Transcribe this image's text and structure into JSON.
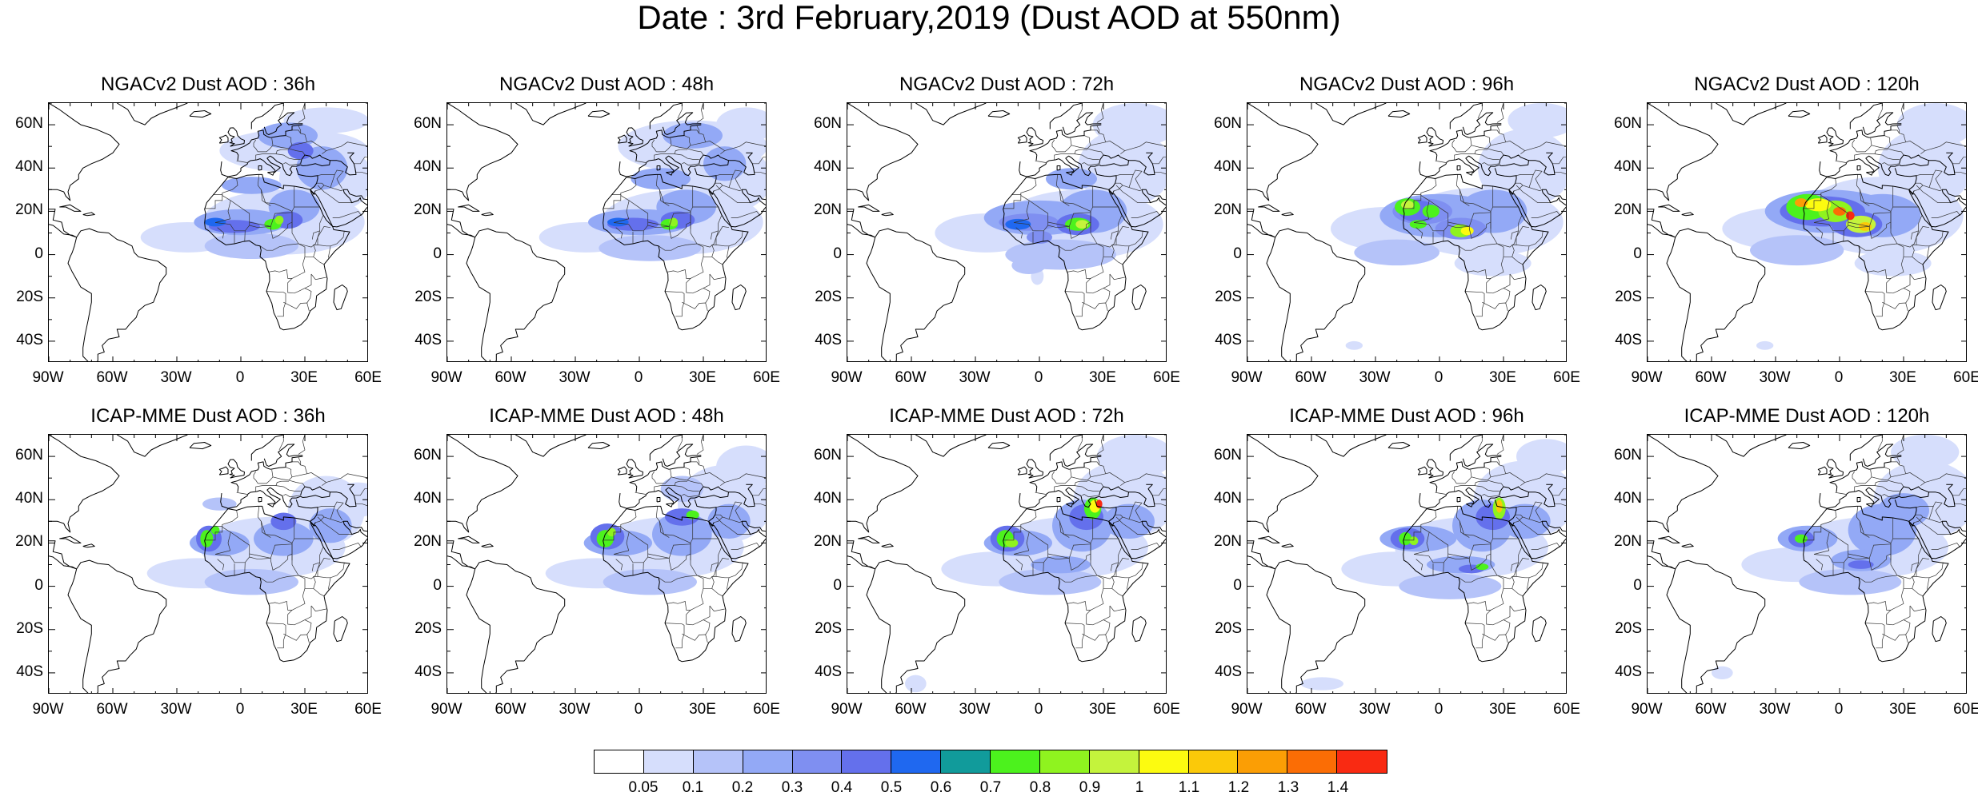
{
  "title": "Date : 3rd February,2019 (Dust AOD at 550nm)",
  "lat_labels": [
    "60N",
    "40N",
    "20N",
    "0",
    "20S",
    "40S"
  ],
  "lat_values": [
    60,
    40,
    20,
    0,
    -20,
    -40
  ],
  "lon_labels": [
    "90W",
    "60W",
    "30W",
    "0",
    "30E",
    "60E"
  ],
  "lon_values": [
    -90,
    -60,
    -30,
    0,
    30,
    60
  ],
  "map_extent": {
    "lon": [
      -90,
      60
    ],
    "lat": [
      -50,
      70
    ]
  },
  "panels": [
    {
      "title": "NGACv2 Dust AOD : 36h",
      "model": "NGACv2",
      "lead": "36h"
    },
    {
      "title": "NGACv2 Dust AOD : 48h",
      "model": "NGACv2",
      "lead": "48h"
    },
    {
      "title": "NGACv2 Dust AOD : 72h",
      "model": "NGACv2",
      "lead": "72h"
    },
    {
      "title": "NGACv2 Dust AOD : 96h",
      "model": "NGACv2",
      "lead": "96h"
    },
    {
      "title": "NGACv2 Dust AOD : 120h",
      "model": "NGACv2",
      "lead": "120h"
    },
    {
      "title": "ICAP-MME Dust AOD : 36h",
      "model": "ICAP-MME",
      "lead": "36h"
    },
    {
      "title": "ICAP-MME Dust AOD : 48h",
      "model": "ICAP-MME",
      "lead": "48h"
    },
    {
      "title": "ICAP-MME Dust AOD : 72h",
      "model": "ICAP-MME",
      "lead": "72h"
    },
    {
      "title": "ICAP-MME Dust AOD : 96h",
      "model": "ICAP-MME",
      "lead": "96h"
    },
    {
      "title": "ICAP-MME Dust AOD : 120h",
      "model": "ICAP-MME",
      "lead": "120h"
    }
  ],
  "colorbar": {
    "labels": [
      "0.05",
      "0.1",
      "0.2",
      "0.3",
      "0.4",
      "0.5",
      "0.6",
      "0.7",
      "0.8",
      "0.9",
      "1",
      "1.1",
      "1.2",
      "1.3",
      "1.4"
    ],
    "colors": [
      "#ffffff",
      "#d6defc",
      "#b5c3f9",
      "#93a9f6",
      "#7f8ff1",
      "#6470ec",
      "#1f68f0",
      "#119b9b",
      "#4cf21d",
      "#8ff31f",
      "#c4f33c",
      "#fcfb10",
      "#fbc909",
      "#fb9e05",
      "#fb6d05",
      "#f92a12"
    ]
  }
}
